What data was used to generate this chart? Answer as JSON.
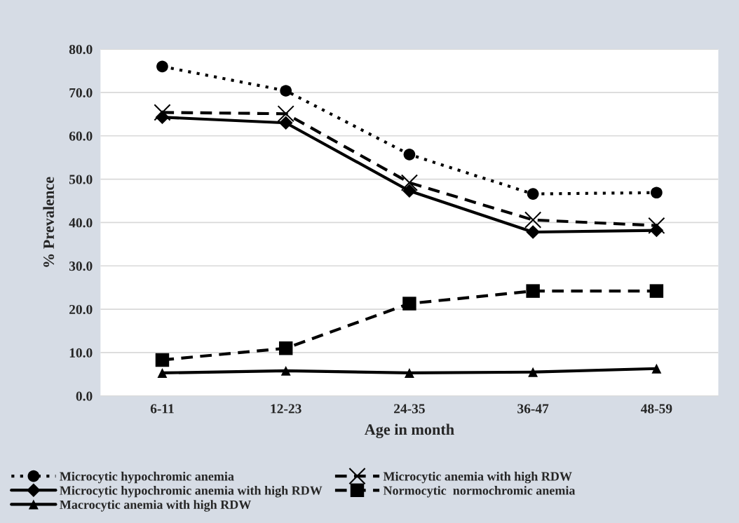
{
  "chart_data": {
    "type": "line",
    "xlabel": "Age in month",
    "ylabel": "% Prevalence",
    "categories": [
      "6-11",
      "12-23",
      "24-35",
      "36-47",
      "48-59"
    ],
    "ylim": [
      0,
      80
    ],
    "yticks": [
      {
        "value": 0,
        "label": "0.0"
      },
      {
        "value": 10,
        "label": "10.0"
      },
      {
        "value": 20,
        "label": "20.0"
      },
      {
        "value": 30,
        "label": "30.0"
      },
      {
        "value": 40,
        "label": "40.0"
      },
      {
        "value": 50,
        "label": "50.0"
      },
      {
        "value": 60,
        "label": "60.0"
      },
      {
        "value": 70,
        "label": "70.0"
      },
      {
        "value": 80,
        "label": "80.0"
      }
    ],
    "grid": "y",
    "legend": "bottom",
    "series": [
      {
        "name": "Microcytic hypochromic anemia",
        "color": "#000000",
        "marker": "circle",
        "line_style": "dotted",
        "values": [
          76.0,
          70.4,
          55.7,
          46.6,
          46.9
        ]
      },
      {
        "name": "Microcytic anemia with high RDW",
        "color": "#000000",
        "marker": "cross",
        "line_style": "dashed",
        "values": [
          65.4,
          65.1,
          49.2,
          40.6,
          39.3
        ]
      },
      {
        "name": "Microcytic hypochromic anemia with high RDW",
        "color": "#000000",
        "marker": "diamond",
        "line_style": "solid",
        "values": [
          64.3,
          63.0,
          47.3,
          37.8,
          38.2
        ]
      },
      {
        "name": "Normocytic  normochromic anemia",
        "color": "#000000",
        "marker": "square",
        "line_style": "dashed",
        "values": [
          8.3,
          11.0,
          21.3,
          24.2,
          24.2
        ]
      },
      {
        "name": "Macrocytic anemia with high RDW",
        "color": "#000000",
        "marker": "triangle",
        "line_style": "solid",
        "values": [
          5.3,
          5.8,
          5.3,
          5.5,
          6.3
        ]
      }
    ]
  }
}
